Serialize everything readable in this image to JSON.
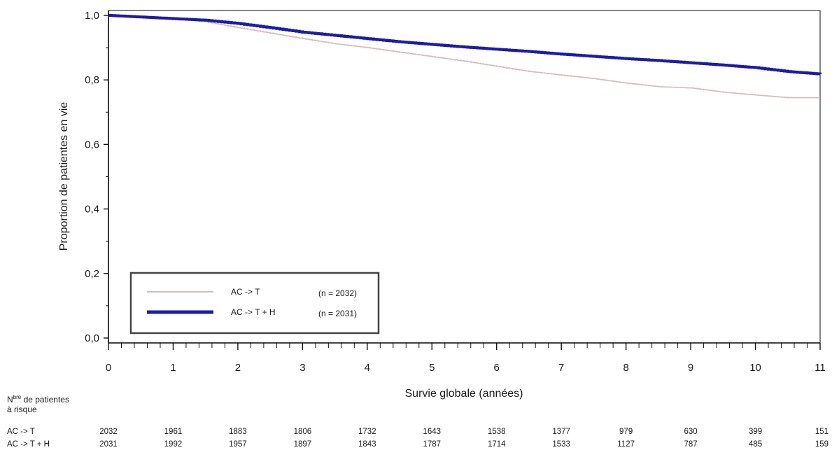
{
  "chart_data": {
    "type": "line",
    "title": "",
    "xlabel": "Survie globale (années)",
    "ylabel": "Proportion de patientes en vie",
    "xlim": [
      0,
      11
    ],
    "ylim": [
      0,
      1
    ],
    "x_ticks": [
      "0",
      "1",
      "2",
      "3",
      "4",
      "5",
      "6",
      "7",
      "8",
      "9",
      "10",
      "11"
    ],
    "y_ticks": [
      "0,0",
      "0,2",
      "0,4",
      "0,6",
      "0,8",
      "1,0"
    ],
    "grid": false,
    "legend_position": "bottom-left",
    "series": [
      {
        "name": "AC -> T",
        "n_label": "(n = 2032)",
        "color": "#d9b9b9",
        "points": [
          [
            0,
            1.0
          ],
          [
            0.5,
            0.995
          ],
          [
            1,
            0.99
          ],
          [
            1.5,
            0.98
          ],
          [
            2,
            0.962
          ],
          [
            2.5,
            0.945
          ],
          [
            3,
            0.928
          ],
          [
            3.5,
            0.912
          ],
          [
            4,
            0.9
          ],
          [
            4.5,
            0.886
          ],
          [
            5,
            0.872
          ],
          [
            5.5,
            0.858
          ],
          [
            6,
            0.842
          ],
          [
            6.5,
            0.826
          ],
          [
            7,
            0.815
          ],
          [
            7.5,
            0.804
          ],
          [
            8,
            0.79
          ],
          [
            8.5,
            0.779
          ],
          [
            9,
            0.775
          ],
          [
            9.5,
            0.762
          ],
          [
            10,
            0.753
          ],
          [
            10.5,
            0.745
          ],
          [
            11,
            0.745
          ]
        ]
      },
      {
        "name": "AC -> T + H",
        "n_label": "(n = 2031)",
        "color": "#1c1ca6",
        "points": [
          [
            0,
            1.0
          ],
          [
            0.5,
            0.995
          ],
          [
            1,
            0.99
          ],
          [
            1.5,
            0.985
          ],
          [
            2,
            0.975
          ],
          [
            2.5,
            0.962
          ],
          [
            3,
            0.948
          ],
          [
            3.5,
            0.938
          ],
          [
            4,
            0.928
          ],
          [
            4.5,
            0.918
          ],
          [
            5,
            0.91
          ],
          [
            5.5,
            0.902
          ],
          [
            6,
            0.895
          ],
          [
            6.5,
            0.888
          ],
          [
            7,
            0.88
          ],
          [
            7.5,
            0.873
          ],
          [
            8,
            0.866
          ],
          [
            8.5,
            0.86
          ],
          [
            9,
            0.853
          ],
          [
            9.5,
            0.846
          ],
          [
            10,
            0.838
          ],
          [
            10.5,
            0.826
          ],
          [
            11,
            0.818
          ]
        ]
      }
    ]
  },
  "risk_table": {
    "title_main": "N",
    "title_sup": "bre",
    "title_rest": " de patientes",
    "title_line2": "à risque",
    "rows": [
      {
        "label": "AC -> T",
        "values": [
          "2032",
          "1961",
          "1883",
          "1806",
          "1732",
          "1643",
          "1538",
          "1377",
          "979",
          "630",
          "399",
          "151"
        ]
      },
      {
        "label": "AC -> T + H",
        "values": [
          "2031",
          "1992",
          "1957",
          "1897",
          "1843",
          "1787",
          "1714",
          "1533",
          "1127",
          "787",
          "485",
          "159"
        ]
      }
    ]
  }
}
